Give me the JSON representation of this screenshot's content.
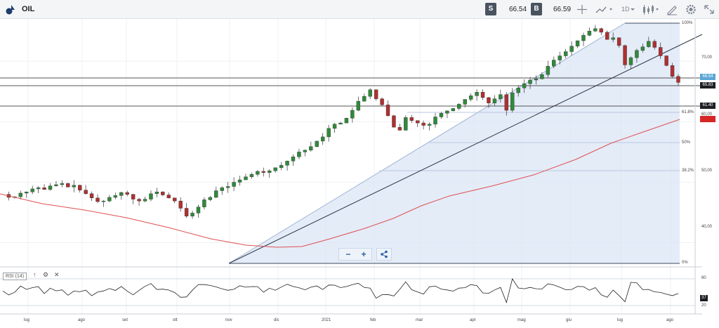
{
  "header": {
    "symbol": "OIL",
    "sell_label": "S",
    "sell_price": "66.54",
    "buy_label": "B",
    "buy_price": "66.59",
    "timeframe": "1D",
    "icons": [
      "crosshair-icon",
      "line-chart-icon",
      "candles-icon",
      "draw-icon",
      "settings-icon",
      "fullscreen-icon"
    ]
  },
  "price_axis": {
    "labels": [
      "100%",
      "70,00",
      "60,00",
      "50,00",
      "40,00",
      "0%"
    ],
    "fib_labels": [
      "61.8%",
      "50%",
      "38.2%"
    ],
    "badges": {
      "sell": "66.54",
      "line1": "65.83",
      "line2": "61.40",
      "ma": "58.69"
    }
  },
  "time_axis": {
    "labels": [
      "lug",
      "ago",
      "set",
      "ott",
      "nov",
      "dic",
      "2021",
      "feb",
      "mar",
      "apr",
      "mag",
      "giu",
      "lug",
      "ago"
    ]
  },
  "rsi": {
    "label": "RSI (14)",
    "level_high": "80",
    "level_low": "20",
    "value": "37"
  },
  "colors": {
    "bull": "#2f8a3a",
    "bear": "#b03030",
    "ma": "#e05050",
    "fib_fill": "#dbe6f6",
    "sell_badge": "#5aa7d6"
  },
  "chart_data": {
    "type": "candlestick",
    "ylim": [
      36,
      77
    ],
    "horizontal_lines": [
      65.83,
      64.2,
      61.4
    ],
    "fibonacci": {
      "0": 36.5,
      "38.2": 51.5,
      "50": 55.6,
      "61.8": 59.8,
      "100": 75.8
    },
    "rsi_levels": [
      80,
      20
    ],
    "rsi_last": 37,
    "close_series": [
      48,
      47.5,
      47.6,
      48.2,
      48.4,
      48.9,
      49.1,
      48.8,
      49.4,
      49.6,
      49.8,
      49.2,
      49.5,
      48.7,
      48.1,
      47.4,
      46.8,
      46.9,
      47.5,
      47.8,
      48.3,
      48.0,
      47.2,
      46.9,
      47.2,
      48.1,
      48.4,
      47.9,
      47.4,
      46.9,
      45.7,
      44.4,
      44.9,
      45.9,
      47.1,
      47.5,
      48.6,
      49.1,
      49.3,
      50.0,
      50.4,
      50.9,
      51.3,
      51.8,
      51.6,
      51.9,
      52.4,
      52.8,
      53.5,
      54.2,
      55.0,
      55.3,
      55.9,
      56.8,
      57.5,
      58.9,
      59.6,
      59.8,
      60.6,
      61.9,
      63.4,
      64.2,
      65.3,
      63.8,
      62.8,
      61.0,
      59.1,
      58.6,
      60.7,
      60.2,
      59.8,
      59.4,
      59.6,
      60.8,
      61.4,
      61.8,
      62.2,
      62.9,
      63.7,
      64.3,
      64.9,
      64.0,
      63.1,
      63.8,
      64.5,
      61.9,
      64.8,
      65.6,
      66.3,
      66.9,
      67.1,
      67.8,
      69.2,
      70.2,
      70.9,
      71.6,
      72.5,
      73.4,
      74.3,
      75.0,
      75.4,
      74.8,
      73.6,
      73.9,
      72.6,
      69.4,
      70.6,
      71.8,
      72.4,
      73.3,
      72.3,
      70.9,
      69.3,
      67.5,
      66.5
    ]
  }
}
